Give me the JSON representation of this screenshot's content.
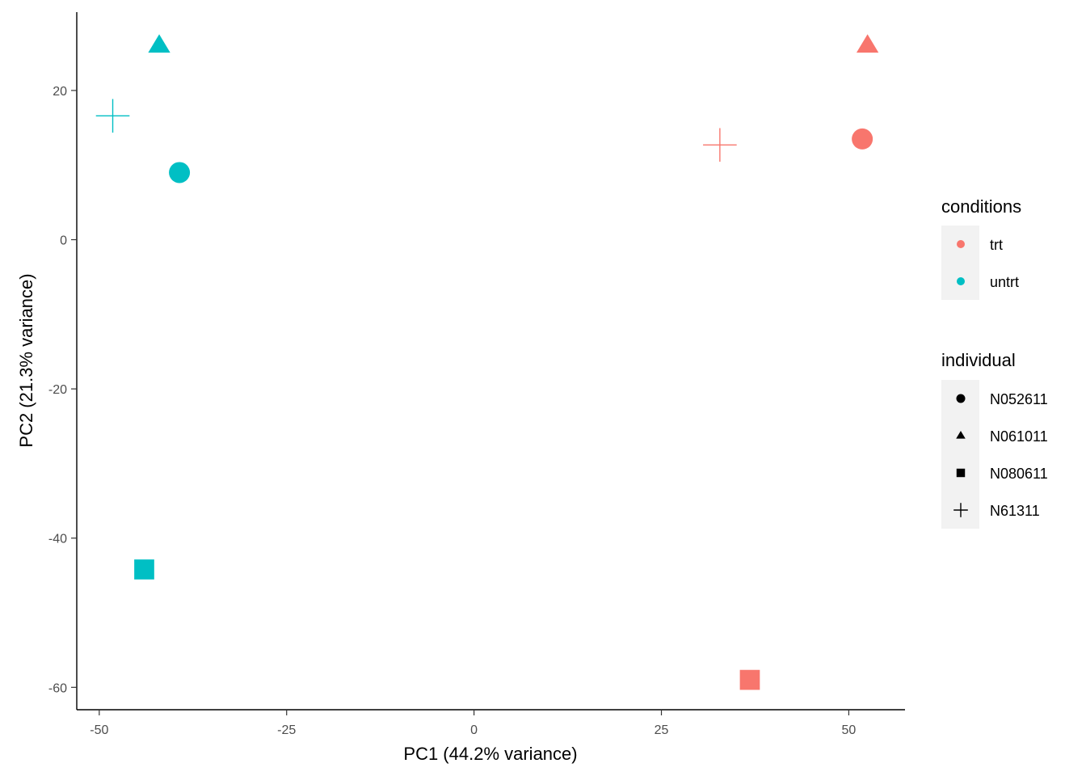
{
  "chart_data": {
    "type": "scatter",
    "xlabel": "PC1 (44.2% variance)",
    "ylabel": "PC2 (21.3% variance)",
    "xlim": [
      -53,
      57.5
    ],
    "ylim": [
      -63,
      30.5
    ],
    "xticks": [
      -50,
      -25,
      0,
      25,
      50
    ],
    "yticks": [
      -60,
      -40,
      -20,
      0,
      20
    ],
    "grid": false,
    "legend_position": "right",
    "colors": {
      "trt": "#F8766D",
      "untrt": "#00BFC4"
    },
    "shapes": {
      "N052611": "circle",
      "N061011": "triangle",
      "N080611": "square",
      "N61311": "plus"
    },
    "legends": [
      {
        "title": "conditions",
        "items": [
          {
            "label": "trt",
            "key": "trt"
          },
          {
            "label": "untrt",
            "key": "untrt"
          }
        ]
      },
      {
        "title": "individual",
        "items": [
          {
            "label": "N052611",
            "key": "N052611"
          },
          {
            "label": "N061011",
            "key": "N061011"
          },
          {
            "label": "N080611",
            "key": "N080611"
          },
          {
            "label": "N61311",
            "key": "N61311"
          }
        ]
      }
    ],
    "points": [
      {
        "x": 52.5,
        "y": 26.0,
        "condition": "trt",
        "individual": "N061011"
      },
      {
        "x": 51.8,
        "y": 13.5,
        "condition": "trt",
        "individual": "N052611"
      },
      {
        "x": 32.8,
        "y": 12.7,
        "condition": "trt",
        "individual": "N61311"
      },
      {
        "x": 36.8,
        "y": -59.0,
        "condition": "trt",
        "individual": "N080611"
      },
      {
        "x": -42.0,
        "y": 26.0,
        "condition": "untrt",
        "individual": "N061011"
      },
      {
        "x": -48.2,
        "y": 16.6,
        "condition": "untrt",
        "individual": "N61311"
      },
      {
        "x": -39.3,
        "y": 9.0,
        "condition": "untrt",
        "individual": "N052611"
      },
      {
        "x": -44.0,
        "y": -44.2,
        "condition": "untrt",
        "individual": "N080611"
      }
    ]
  }
}
